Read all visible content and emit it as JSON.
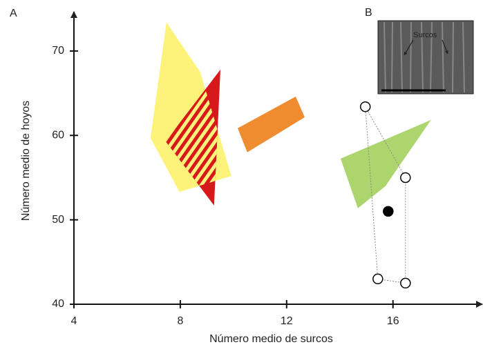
{
  "panel_label": "A",
  "inset": {
    "label": "B",
    "annotation": "Surcos"
  },
  "chart_data": {
    "type": "scatter",
    "xlabel": "Número medio de surcos",
    "ylabel": "Número medio de hoyos",
    "xlim": [
      4,
      19.1
    ],
    "ylim": [
      40,
      74
    ],
    "xticks": [
      4,
      8,
      12,
      16
    ],
    "yticks": [
      40,
      50,
      60,
      70
    ],
    "series": [
      {
        "shape": "polygon",
        "color": "#fdf37a",
        "x": [
          7.48,
          8.75,
          9.92,
          7.97,
          6.88
        ],
        "y": [
          73.4,
          67.5,
          55.2,
          53.3,
          59.7
        ]
      },
      {
        "shape": "polygon",
        "color": "#d7191c",
        "hatch": true,
        "x": [
          9.51,
          9.27,
          7.45
        ],
        "y": [
          67.8,
          51.7,
          59.3
        ]
      },
      {
        "shape": "polygon",
        "color": "#f08c30",
        "x": [
          10.16,
          12.34,
          12.68,
          10.52
        ],
        "y": [
          60.85,
          64.6,
          62.15,
          58.0
        ]
      },
      {
        "shape": "polygon",
        "color": "#acd56e",
        "x": [
          14.03,
          17.43,
          15.71,
          14.68
        ],
        "y": [
          57.25,
          61.83,
          53.98,
          51.37
        ]
      },
      {
        "shape": "points",
        "marker": "open",
        "outline": "dotted",
        "color": "#000000",
        "x": [
          14.96,
          16.47,
          16.47,
          15.43
        ],
        "y": [
          63.4,
          55.0,
          42.5,
          43.0
        ]
      },
      {
        "shape": "points",
        "marker": "filled",
        "color": "#000000",
        "x": [
          15.82
        ],
        "y": [
          51.0
        ]
      }
    ]
  }
}
